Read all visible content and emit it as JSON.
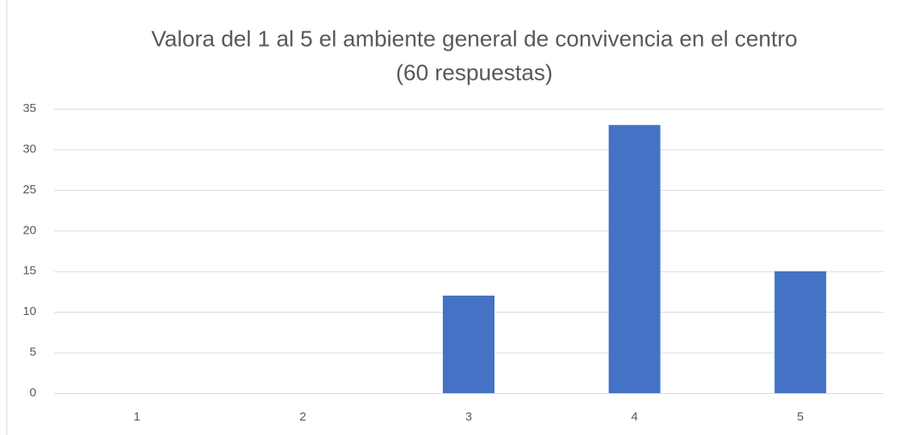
{
  "chart_data": {
    "type": "bar",
    "title": "Valora del 1 al 5 el ambiente general de convivencia en el centro",
    "subtitle": "(60 respuestas)",
    "categories": [
      "1",
      "2",
      "3",
      "4",
      "5"
    ],
    "values": [
      0,
      0,
      12,
      33,
      15
    ],
    "color": "#4472c4",
    "ylim": [
      0,
      35
    ],
    "yticks": [
      0,
      5,
      10,
      15,
      20,
      25,
      30,
      35
    ],
    "grid": true
  }
}
